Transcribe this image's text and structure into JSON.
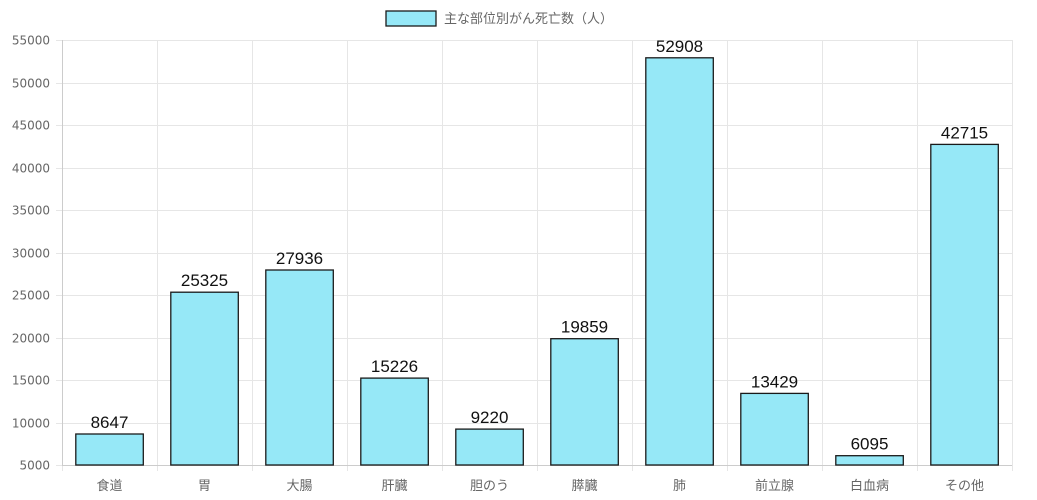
{
  "chart_data": {
    "type": "bar",
    "categories": [
      "食道",
      "胃",
      "大腸",
      "肝臓",
      "胆のう",
      "膵臓",
      "肺",
      "前立腺",
      "白血病",
      "その他"
    ],
    "series": [
      {
        "name": "主な部位別がん死亡数（人）",
        "values": [
          8647,
          25325,
          27936,
          15226,
          9220,
          19859,
          52908,
          13429,
          6095,
          42715
        ]
      }
    ],
    "title": "",
    "xlabel": "",
    "ylabel": "",
    "ylim": [
      5000,
      55000
    ],
    "yticks": [
      5000,
      10000,
      15000,
      20000,
      25000,
      30000,
      35000,
      40000,
      45000,
      50000,
      55000
    ],
    "legend_position": "top",
    "grid": true,
    "show_data_labels": true,
    "colors": {
      "bar_fill": "#96e8f7",
      "bar_stroke": "#1a1a1a",
      "grid": "#e6e6e6",
      "axis": "#cccccc",
      "tick_text": "#666666",
      "data_label_text": "#111111"
    }
  }
}
